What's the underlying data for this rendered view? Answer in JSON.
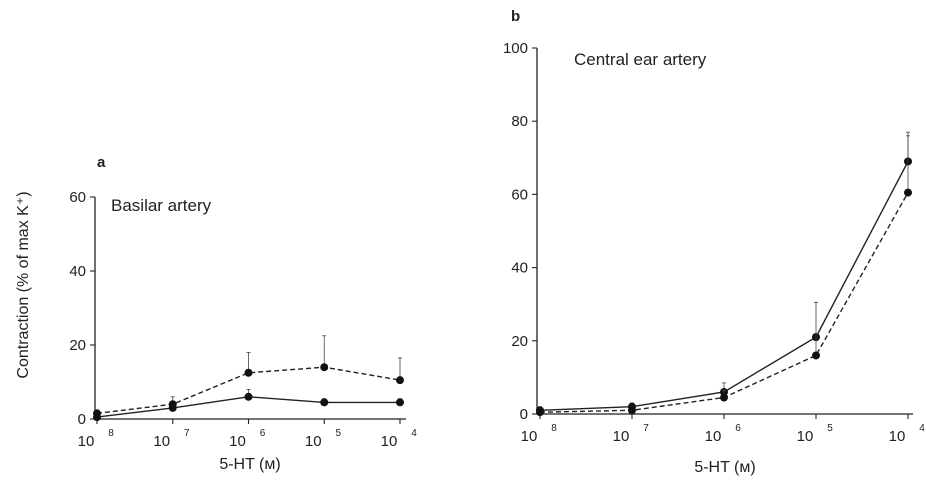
{
  "figure": {
    "ylabel": "Contraction (% of max K⁺)",
    "xlabel": "5-HT (м)"
  },
  "chart_data": [
    {
      "panel": "a",
      "type": "line",
      "title": "Basilar artery",
      "x_ticks": [
        {
          "base": "10",
          "exp": "8"
        },
        {
          "base": "10",
          "exp": "7"
        },
        {
          "base": "10",
          "exp": "6"
        },
        {
          "base": "10",
          "exp": "5"
        },
        {
          "base": "10",
          "exp": "4"
        }
      ],
      "x": [
        -8,
        -7,
        -6,
        -5,
        -4
      ],
      "y_ticks": [
        "0",
        "20",
        "40",
        "60"
      ],
      "ylim": [
        0,
        60
      ],
      "series": [
        {
          "style": "solid",
          "values": [
            0.5,
            3,
            6,
            4.5,
            4.5
          ],
          "err": [
            0.5,
            1,
            2,
            1,
            1
          ]
        },
        {
          "style": "dashed",
          "values": [
            1.5,
            4,
            12.5,
            14,
            10.5
          ],
          "err": [
            1,
            2,
            5.5,
            8.5,
            6
          ]
        }
      ],
      "xlabel": "5-HT (м)",
      "ylabel": "Contraction (% of max K⁺)"
    },
    {
      "panel": "b",
      "type": "line",
      "title": "Central ear artery",
      "x_ticks": [
        {
          "base": "10",
          "exp": "8"
        },
        {
          "base": "10",
          "exp": "7"
        },
        {
          "base": "10",
          "exp": "6"
        },
        {
          "base": "10",
          "exp": "5"
        },
        {
          "base": "10",
          "exp": "4"
        }
      ],
      "x": [
        -8,
        -7,
        -6,
        -5,
        -4
      ],
      "y_ticks": [
        "0",
        "20",
        "40",
        "60",
        "80",
        "100"
      ],
      "ylim": [
        0,
        100
      ],
      "series": [
        {
          "style": "solid",
          "values": [
            1,
            2,
            6,
            21,
            69
          ],
          "err": [
            1,
            1,
            2.5,
            9.5,
            8
          ]
        },
        {
          "style": "dashed",
          "values": [
            0.5,
            1,
            4.5,
            16,
            60.5
          ],
          "err": [
            1,
            1,
            2,
            6,
            15.5
          ]
        }
      ],
      "xlabel": "5-HT (м)"
    }
  ]
}
